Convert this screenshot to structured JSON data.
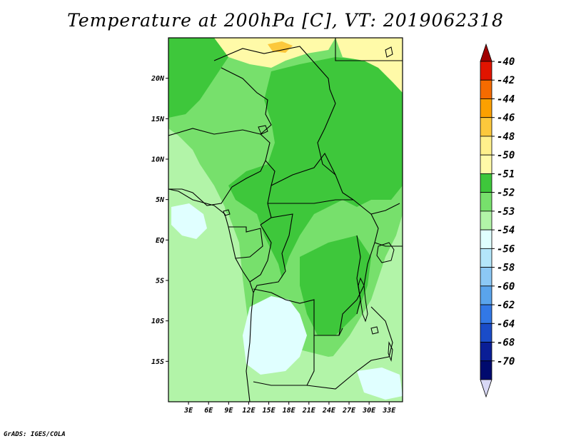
{
  "title": "Temperature at 200hPa [C], VT: 2019062318",
  "credit": "GrADS: IGES/COLA",
  "map": {
    "lat_range": [
      -20,
      25
    ],
    "lon_range": [
      0,
      35
    ],
    "lat_ticks": [
      "20N",
      "15N",
      "10N",
      "5N",
      "EQ",
      "5S",
      "10S",
      "15S"
    ],
    "lon_ticks": [
      "3E",
      "6E",
      "9E",
      "12E",
      "15E",
      "18E",
      "21E",
      "24E",
      "27E",
      "30E",
      "33E"
    ]
  },
  "colorbar": {
    "labels": [
      "-40",
      "-42",
      "-44",
      "-46",
      "-48",
      "-50",
      "-51",
      "-52",
      "-53",
      "-54",
      "-56",
      "-58",
      "-60",
      "-62",
      "-64",
      "-68",
      "-70"
    ],
    "colors": [
      "#a10000",
      "#e11400",
      "#f56b00",
      "#fca000",
      "#fcc83c",
      "#fff08c",
      "#fffaa8",
      "#3ec73b",
      "#77e06c",
      "#b2f4a8",
      "#e0ffff",
      "#b4e6fa",
      "#8cc8f5",
      "#5aa4ec",
      "#3278e6",
      "#1a4cc8",
      "#0a1e96",
      "#000a6e",
      "#d8d8f5"
    ]
  },
  "fill_colors": {
    "c52": "#3ec73b",
    "c53": "#77e06c",
    "c54": "#b2f4a8",
    "c56": "#e0ffff",
    "c50": "#fffaa8"
  }
}
